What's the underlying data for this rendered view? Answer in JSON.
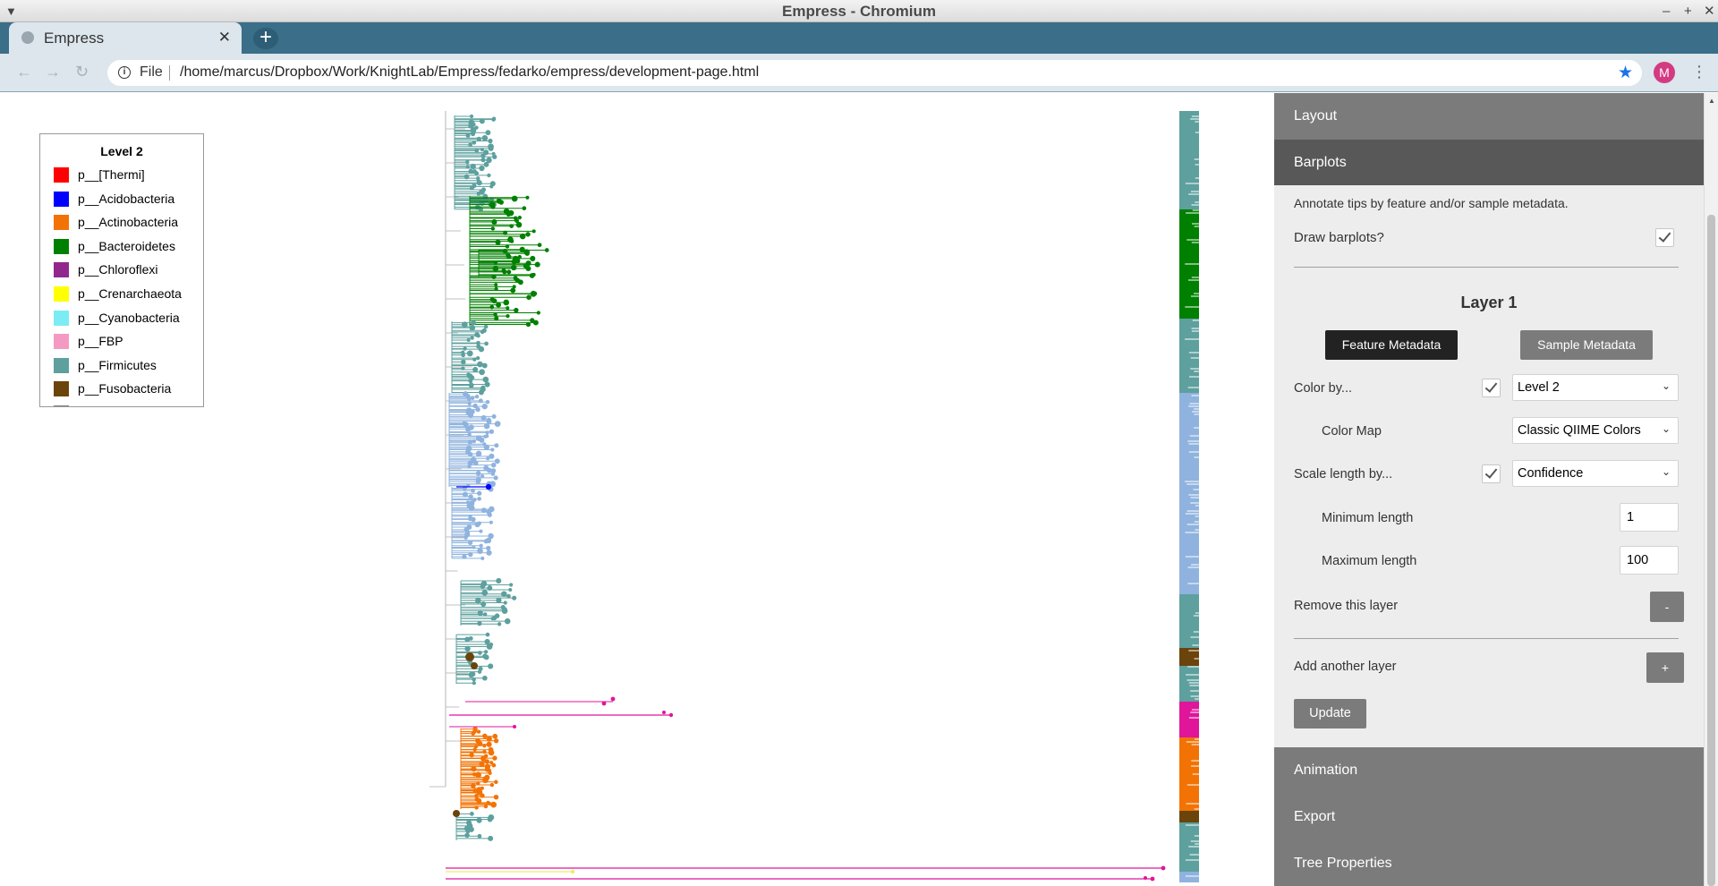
{
  "window": {
    "title": "Empress - Chromium"
  },
  "browser": {
    "tab_title": "Empress",
    "tab_close": "✕",
    "new_tab": "+",
    "omnibox_scheme": "File",
    "url": "/home/marcus/Dropbox/Work/KnightLab/Empress/fedarko/empress/development-page.html",
    "profile_initial": "M"
  },
  "legend": {
    "title": "Level 2",
    "items": [
      {
        "label": "p__[Thermi]",
        "color": "#ff0000"
      },
      {
        "label": "p__Acidobacteria",
        "color": "#0000ff"
      },
      {
        "label": "p__Actinobacteria",
        "color": "#f27304"
      },
      {
        "label": "p__Bacteroidetes",
        "color": "#008000"
      },
      {
        "label": "p__Chloroflexi",
        "color": "#91278d"
      },
      {
        "label": "p__Crenarchaeota",
        "color": "#ffff00"
      },
      {
        "label": "p__Cyanobacteria",
        "color": "#7cecf4"
      },
      {
        "label": "p__FBP",
        "color": "#f49ac2"
      },
      {
        "label": "p__Firmicutes",
        "color": "#5da09e"
      },
      {
        "label": "p__Fusobacteria",
        "color": "#6b440b"
      },
      {
        "label": "",
        "color": "#808080"
      }
    ]
  },
  "panel": {
    "sections": {
      "layout": "Layout",
      "barplots": "Barplots",
      "animation": "Animation",
      "export": "Export",
      "tree_properties": "Tree Properties"
    },
    "barplots": {
      "description": "Annotate tips by feature and/or sample metadata.",
      "draw_label": "Draw barplots?",
      "draw_checked": true,
      "layer_title": "Layer 1",
      "feature_metadata_btn": "Feature Metadata",
      "sample_metadata_btn": "Sample Metadata",
      "color_by_label": "Color by...",
      "color_by_value": "Level 2",
      "color_map_label": "Color Map",
      "color_map_value": "Classic QIIME Colors",
      "scale_length_label": "Scale length by...",
      "scale_length_value": "Confidence",
      "min_length_label": "Minimum length",
      "min_length_value": "1",
      "max_length_label": "Maximum length",
      "max_length_value": "100",
      "remove_layer_label": "Remove this layer",
      "remove_layer_btn": "-",
      "add_layer_label": "Add another layer",
      "add_layer_btn": "+",
      "update_btn": "Update"
    }
  },
  "colors": {
    "firmicutes": "#5da09e",
    "bacteroidetes": "#008000",
    "proteobacteria": "#8fb3de",
    "actinobacteria": "#f27304",
    "pink": "#e0159a",
    "gray_branch": "#c0c0c0"
  }
}
